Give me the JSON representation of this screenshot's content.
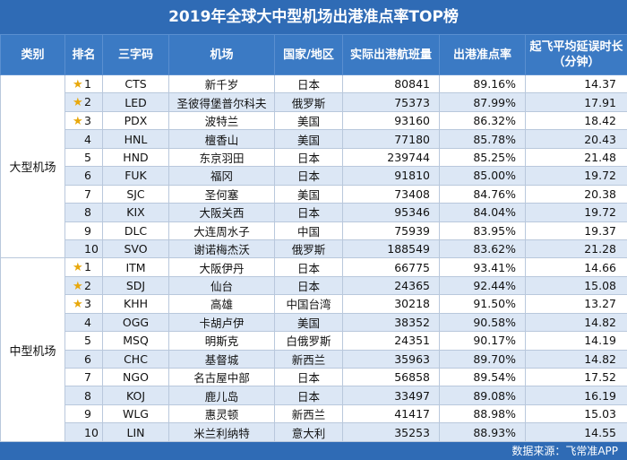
{
  "title": "2019年全球大中型机场出港准点率TOP榜",
  "headers": [
    "类别",
    "排名",
    "三字码",
    "机场",
    "国家/地区",
    "实际出港航班量",
    "出港准点率",
    "起飞平均延误时长",
    "（分钟）"
  ],
  "categories": [
    "大型机场",
    "中型机场"
  ],
  "large": [
    {
      "rank": "1",
      "code": "CTS",
      "airport": "新千岁",
      "country": "日本",
      "flights": "80841",
      "rate": "89.16%",
      "delay": "14.37"
    },
    {
      "rank": "2",
      "code": "LED",
      "airport": "圣彼得堡普尔科夫",
      "country": "俄罗斯",
      "flights": "75373",
      "rate": "87.99%",
      "delay": "17.91"
    },
    {
      "rank": "3",
      "code": "PDX",
      "airport": "波特兰",
      "country": "美国",
      "flights": "93160",
      "rate": "86.32%",
      "delay": "18.42"
    },
    {
      "rank": "4",
      "code": "HNL",
      "airport": "檀香山",
      "country": "美国",
      "flights": "77180",
      "rate": "85.78%",
      "delay": "20.43"
    },
    {
      "rank": "5",
      "code": "HND",
      "airport": "东京羽田",
      "country": "日本",
      "flights": "239744",
      "rate": "85.25%",
      "delay": "21.48"
    },
    {
      "rank": "6",
      "code": "FUK",
      "airport": "福冈",
      "country": "日本",
      "flights": "91810",
      "rate": "85.00%",
      "delay": "19.72"
    },
    {
      "rank": "7",
      "code": "SJC",
      "airport": "圣何塞",
      "country": "美国",
      "flights": "73408",
      "rate": "84.76%",
      "delay": "20.38"
    },
    {
      "rank": "8",
      "code": "KIX",
      "airport": "大阪关西",
      "country": "日本",
      "flights": "95346",
      "rate": "84.04%",
      "delay": "19.72"
    },
    {
      "rank": "9",
      "code": "DLC",
      "airport": "大连周水子",
      "country": "中国",
      "flights": "75939",
      "rate": "83.95%",
      "delay": "19.37"
    },
    {
      "rank": "10",
      "code": "SVO",
      "airport": "谢诺梅杰沃",
      "country": "俄罗斯",
      "flights": "188549",
      "rate": "83.62%",
      "delay": "21.28"
    }
  ],
  "medium": [
    {
      "rank": "1",
      "code": "ITM",
      "airport": "大阪伊丹",
      "country": "日本",
      "flights": "66775",
      "rate": "93.41%",
      "delay": "14.66"
    },
    {
      "rank": "2",
      "code": "SDJ",
      "airport": "仙台",
      "country": "日本",
      "flights": "24365",
      "rate": "92.44%",
      "delay": "15.08"
    },
    {
      "rank": "3",
      "code": "KHH",
      "airport": "高雄",
      "country": "中国台湾",
      "flights": "30218",
      "rate": "91.50%",
      "delay": "13.27"
    },
    {
      "rank": "4",
      "code": "OGG",
      "airport": "卡胡卢伊",
      "country": "美国",
      "flights": "38352",
      "rate": "90.58%",
      "delay": "14.82"
    },
    {
      "rank": "5",
      "code": "MSQ",
      "airport": "明斯克",
      "country": "白俄罗斯",
      "flights": "24351",
      "rate": "90.17%",
      "delay": "14.19"
    },
    {
      "rank": "6",
      "code": "CHC",
      "airport": "基督城",
      "country": "新西兰",
      "flights": "35963",
      "rate": "89.70%",
      "delay": "14.82"
    },
    {
      "rank": "7",
      "code": "NGO",
      "airport": "名古屋中部",
      "country": "日本",
      "flights": "56858",
      "rate": "89.54%",
      "delay": "17.52"
    },
    {
      "rank": "8",
      "code": "KOJ",
      "airport": "鹿儿岛",
      "country": "日本",
      "flights": "33497",
      "rate": "89.08%",
      "delay": "16.19"
    },
    {
      "rank": "9",
      "code": "WLG",
      "airport": "惠灵顿",
      "country": "新西兰",
      "flights": "41417",
      "rate": "88.98%",
      "delay": "15.03"
    },
    {
      "rank": "10",
      "code": "LIN",
      "airport": "米兰利纳特",
      "country": "意大利",
      "flights": "35253",
      "rate": "88.93%",
      "delay": "14.55"
    }
  ],
  "footer": "数据来源：飞常准APP",
  "colors": {
    "header": "#3b7ac4",
    "title": "#2f6bb5",
    "stripe": "#dce7f5",
    "star": "#e8a80c"
  },
  "star_icon": "★"
}
